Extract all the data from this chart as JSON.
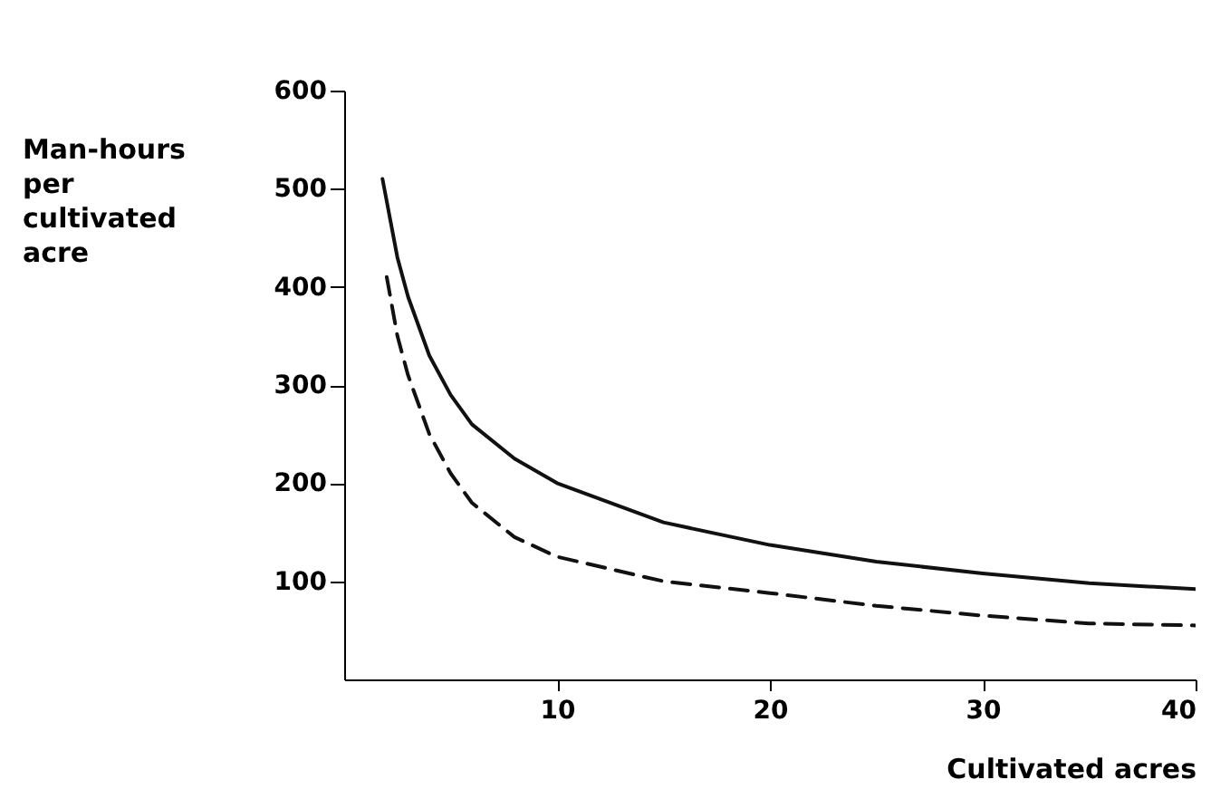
{
  "chart_data": {
    "type": "line",
    "xlabel": "Cultivated acres",
    "ylabel": "Man-hours per cultivated acre",
    "xlim": [
      0,
      40
    ],
    "xticks": [
      10,
      20,
      30,
      40
    ],
    "ylim": [
      0,
      600
    ],
    "yticks": [
      100,
      200,
      300,
      400,
      500,
      600
    ],
    "marker": "none",
    "series": [
      {
        "color": "#111111",
        "line_style": "solid",
        "x": [
          1.8,
          2.5,
          3,
          4,
          5,
          6,
          8,
          10,
          15,
          20,
          25,
          30,
          35,
          40
        ],
        "values": [
          510,
          430,
          390,
          330,
          290,
          260,
          225,
          200,
          160,
          137,
          120,
          108,
          98,
          92
        ]
      },
      {
        "color": "#111111",
        "line_style": "dashed",
        "x": [
          2,
          2.5,
          3,
          4,
          5,
          6,
          8,
          10,
          15,
          20,
          25,
          30,
          35,
          40
        ],
        "values": [
          410,
          350,
          310,
          250,
          210,
          180,
          145,
          125,
          100,
          88,
          75,
          65,
          57,
          55
        ]
      }
    ]
  }
}
